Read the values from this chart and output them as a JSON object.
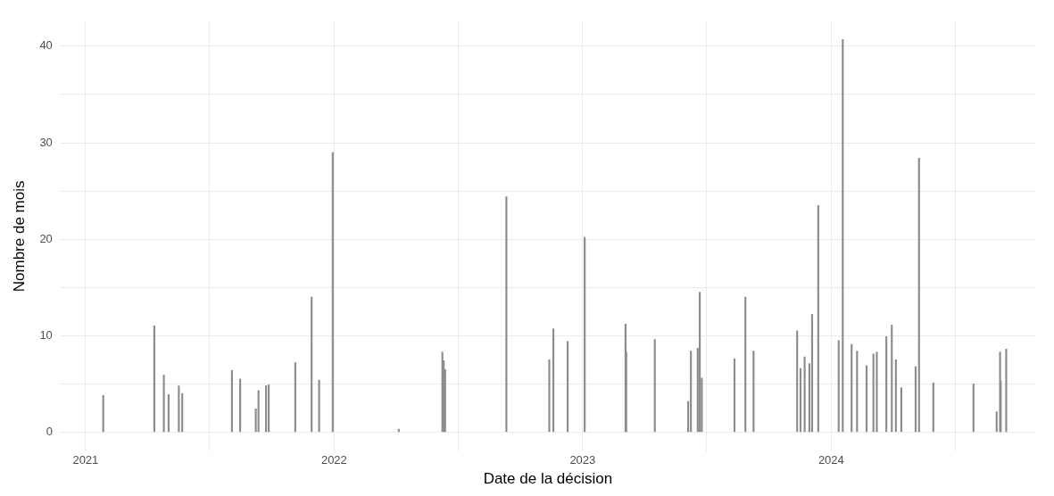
{
  "chart_data": {
    "type": "bar",
    "xlabel": "Date de la décision",
    "ylabel": "Nombre de mois",
    "color": "#8c8c8c",
    "grid": true,
    "legend": false,
    "x": [
      "2021-01-27",
      "2021-04-12",
      "2021-04-26",
      "2021-05-03",
      "2021-05-18",
      "2021-05-23",
      "2021-08-04",
      "2021-08-16",
      "2021-09-08",
      "2021-09-12",
      "2021-09-23",
      "2021-09-27",
      "2021-11-05",
      "2021-11-29",
      "2021-12-10",
      "2021-12-30",
      "2022-04-06",
      "2022-06-09",
      "2022-06-11",
      "2022-06-13",
      "2022-09-11",
      "2022-11-13",
      "2022-11-19",
      "2022-12-10",
      "2023-01-04",
      "2023-03-05",
      "2023-03-06",
      "2023-04-17",
      "2023-06-05",
      "2023-06-09",
      "2023-06-19",
      "2023-06-22",
      "2023-06-25",
      "2023-08-12",
      "2023-08-28",
      "2023-09-09",
      "2023-11-12",
      "2023-11-17",
      "2023-11-23",
      "2023-11-30",
      "2023-12-04",
      "2023-12-13",
      "2024-01-12",
      "2024-01-18",
      "2024-01-31",
      "2024-02-08",
      "2024-02-22",
      "2024-03-03",
      "2024-03-08",
      "2024-03-22",
      "2024-03-30",
      "2024-04-05",
      "2024-04-13",
      "2024-05-04",
      "2024-05-09",
      "2024-05-30",
      "2024-07-28",
      "2024-08-31",
      "2024-09-05",
      "2024-09-06",
      "2024-09-14"
    ],
    "values": [
      3.8,
      11.0,
      5.9,
      3.9,
      4.8,
      4.0,
      6.4,
      5.5,
      2.4,
      4.3,
      4.8,
      4.9,
      7.2,
      14.0,
      5.4,
      29.0,
      0.3,
      8.3,
      7.4,
      6.5,
      24.4,
      7.5,
      10.7,
      9.4,
      20.2,
      11.2,
      8.3,
      9.6,
      3.2,
      8.4,
      8.7,
      14.5,
      5.6,
      7.6,
      14.0,
      8.4,
      10.5,
      6.6,
      7.8,
      7.1,
      12.2,
      23.5,
      9.5,
      40.7,
      9.1,
      8.4,
      6.9,
      8.1,
      8.3,
      9.9,
      11.1,
      7.5,
      4.6,
      6.8,
      28.4,
      5.1,
      5.0,
      2.1,
      8.3,
      5.3,
      8.6
    ],
    "xlim": [
      "2020-11-24",
      "2024-10-28"
    ],
    "xticks": [
      {
        "value": "2021-01-01",
        "label": "2021"
      },
      {
        "value": "2021-07-02",
        "label": null
      },
      {
        "value": "2022-01-01",
        "label": "2022"
      },
      {
        "value": "2022-07-02",
        "label": null
      },
      {
        "value": "2023-01-01",
        "label": "2023"
      },
      {
        "value": "2023-07-02",
        "label": null
      },
      {
        "value": "2024-01-01",
        "label": "2024"
      },
      {
        "value": "2024-07-02",
        "label": null
      }
    ],
    "ylim": [
      -2,
      42.6
    ],
    "yticks": [
      0,
      {
        "value": 5,
        "label": null
      },
      10,
      {
        "value": 15,
        "label": null
      },
      20,
      {
        "value": 25,
        "label": null
      },
      30,
      {
        "value": 35,
        "label": null
      },
      40
    ]
  }
}
